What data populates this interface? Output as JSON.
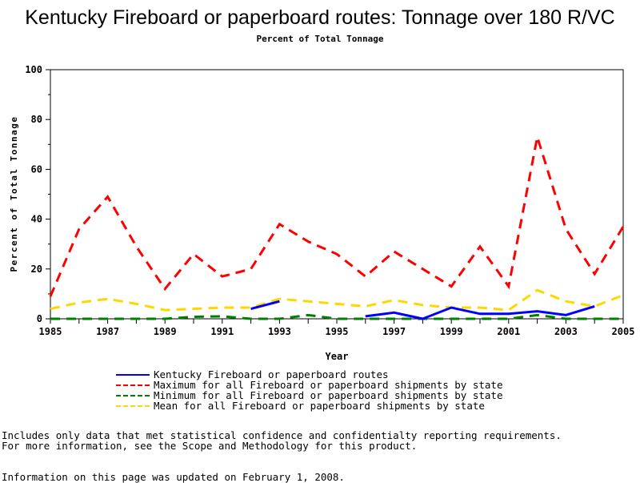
{
  "chart_data": {
    "type": "line",
    "title": "Kentucky Fireboard or paperboard routes: Tonnage over 180 R/VC",
    "subtitle": "Percent of Total Tonnage",
    "xlabel": "Year",
    "ylabel": "Percent of Total Tonnage",
    "xlim": [
      1985,
      2005
    ],
    "ylim": [
      0,
      100
    ],
    "x": [
      1985,
      1986,
      1987,
      1988,
      1989,
      1990,
      1991,
      1992,
      1993,
      1994,
      1995,
      1996,
      1997,
      1998,
      1999,
      2000,
      2001,
      2002,
      2003,
      2004,
      2005
    ],
    "x_tick_labels": [
      "1985",
      "1987",
      "1989",
      "1991",
      "1993",
      "1995",
      "1997",
      "1999",
      "2001",
      "2003",
      "2005"
    ],
    "y_tick_labels": [
      "0",
      "20",
      "40",
      "60",
      "80",
      "100"
    ],
    "grid": false,
    "legend_placement": "bottom",
    "series": [
      {
        "name": "Kentucky Fireboard or paperboard routes",
        "color": "#0000ff",
        "style": "solid",
        "values": [
          null,
          null,
          null,
          null,
          null,
          null,
          null,
          4,
          7,
          null,
          null,
          1,
          2.5,
          0,
          4.5,
          2,
          2,
          3,
          1.5,
          5,
          null
        ]
      },
      {
        "name": "Maximum for all Fireboard or paperboard shipments by state",
        "color": "#ff0000",
        "style": "dashed",
        "values": [
          9,
          36,
          49,
          29,
          12,
          26,
          17,
          20,
          38,
          31,
          26,
          17,
          27,
          20,
          13,
          29,
          13,
          73,
          36,
          18,
          37
        ]
      },
      {
        "name": "Minimum for all Fireboard or paperboard shipments by state",
        "color": "#008000",
        "style": "dashed",
        "values": [
          0,
          0,
          0,
          0,
          0,
          0.8,
          1,
          0,
          0,
          1.5,
          0,
          0,
          0,
          0,
          0,
          0,
          0,
          1.5,
          0,
          0,
          0
        ]
      },
      {
        "name": "Mean for all Fireboard or paperboard shipments by state",
        "color": "#ffd700",
        "style": "dashed",
        "values": [
          4,
          6.5,
          8,
          6,
          3.5,
          4,
          4.5,
          4.5,
          8,
          7,
          6,
          5,
          7.5,
          5.5,
          4.5,
          4.5,
          3.5,
          11.5,
          7,
          5,
          9.5
        ]
      }
    ]
  },
  "notes": {
    "line1": "Includes only data that met statistical confidence and confidentialty reporting requirements.",
    "line2": "For more information, see the Scope and Methodology for this product.",
    "updated": "Information on this page was updated on February 1, 2008."
  }
}
